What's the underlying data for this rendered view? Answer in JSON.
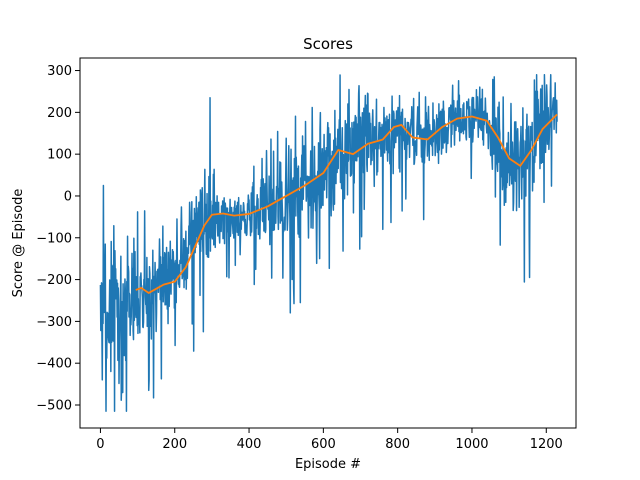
{
  "chart_data": {
    "type": "line",
    "title": "Scores",
    "xlabel": "Episode #",
    "ylabel": "Score @ Episode",
    "xlim": [
      -55,
      1280
    ],
    "ylim": [
      -555,
      330
    ],
    "xticks": [
      0,
      200,
      400,
      600,
      800,
      1000,
      1200
    ],
    "yticks": [
      -500,
      -400,
      -300,
      -200,
      -100,
      0,
      100,
      200,
      300
    ],
    "ytick_labels": [
      "−500",
      "−400",
      "−300",
      "−200",
      "−100",
      "0",
      "100",
      "200",
      "300"
    ],
    "grid": false,
    "colors": {
      "scores": "#1f77b4",
      "moving_average": "#ff7f0e"
    },
    "series": [
      {
        "kind": "per-episode score (noisy)",
        "episode_range": [
          0,
          1229
        ],
        "envelope": {
          "x": [
            0,
            25,
            50,
            75,
            100,
            150,
            200,
            250,
            300,
            350,
            400,
            450,
            500,
            550,
            600,
            650,
            700,
            750,
            800,
            850,
            900,
            950,
            1000,
            1050,
            1100,
            1150,
            1200,
            1229
          ],
          "mid": [
            -270,
            -290,
            -260,
            -250,
            -230,
            -220,
            -190,
            -110,
            -50,
            -50,
            -40,
            -30,
            0,
            40,
            60,
            110,
            130,
            130,
            160,
            140,
            140,
            180,
            190,
            170,
            80,
            100,
            170,
            200
          ],
          "spread": [
            120,
            180,
            160,
            150,
            140,
            130,
            120,
            120,
            110,
            70,
            70,
            110,
            140,
            150,
            150,
            130,
            120,
            110,
            90,
            90,
            100,
            90,
            80,
            110,
            140,
            150,
            100,
            80
          ]
        },
        "notable_points": [
          {
            "x": 5,
            "y": -440
          },
          {
            "x": 8,
            "y": 25
          },
          {
            "x": 38,
            "y": -515
          },
          {
            "x": 60,
            "y": -470
          },
          {
            "x": 130,
            "y": -465
          },
          {
            "x": 295,
            "y": 235
          },
          {
            "x": 520,
            "y": -220
          },
          {
            "x": 590,
            "y": -150
          },
          {
            "x": 1155,
            "y": -195
          },
          {
            "x": 1195,
            "y": 290
          }
        ]
      },
      {
        "kind": "moving average",
        "x": [
          95,
          110,
          130,
          150,
          170,
          200,
          230,
          260,
          280,
          300,
          330,
          360,
          400,
          450,
          500,
          550,
          600,
          640,
          680,
          720,
          760,
          790,
          810,
          840,
          880,
          920,
          960,
          1000,
          1040,
          1070,
          1100,
          1130,
          1160,
          1190,
          1229
        ],
        "y": [
          -225,
          -220,
          -232,
          -222,
          -212,
          -205,
          -170,
          -110,
          -70,
          -45,
          -42,
          -47,
          -43,
          -25,
          0,
          25,
          55,
          110,
          100,
          125,
          135,
          165,
          170,
          140,
          135,
          165,
          185,
          190,
          180,
          140,
          90,
          72,
          110,
          160,
          195
        ]
      }
    ]
  }
}
